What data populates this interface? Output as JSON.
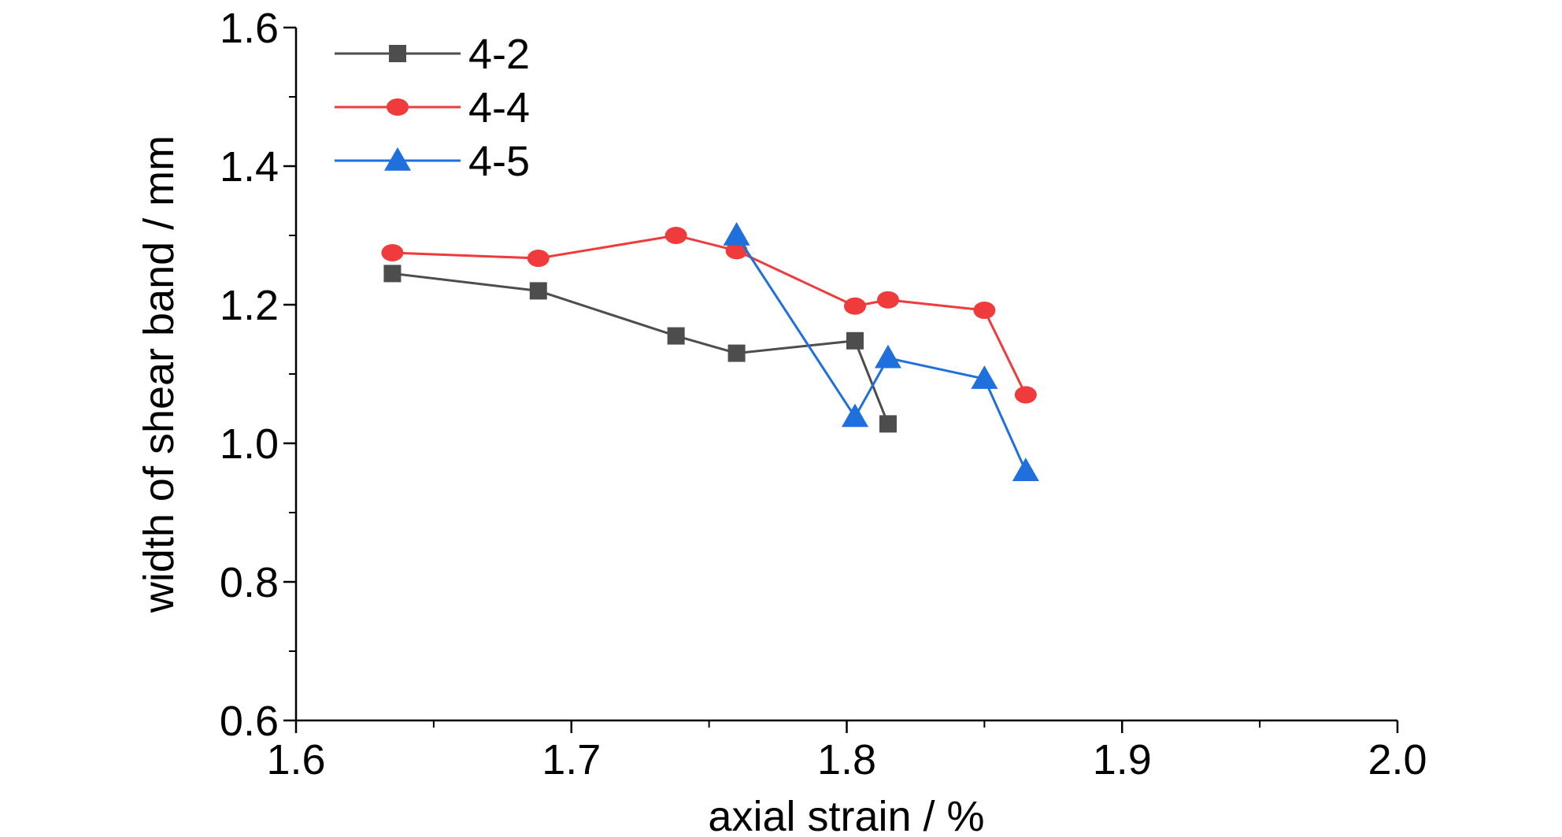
{
  "chart_data": {
    "type": "line",
    "xlabel": "axial strain / %",
    "ylabel": "width of shear band / mm",
    "xlim": [
      1.6,
      2.0
    ],
    "ylim": [
      0.6,
      1.6
    ],
    "x_ticks": [
      "1.6",
      "1.7",
      "1.8",
      "1.9",
      "2.0"
    ],
    "y_ticks": [
      "0.6",
      "0.8",
      "1.0",
      "1.2",
      "1.4",
      "1.6"
    ],
    "grid": false,
    "legend_position": "top-left",
    "series": [
      {
        "name": "4-2",
        "color": "#4d4d4d",
        "marker": "square",
        "x": [
          1.635,
          1.688,
          1.738,
          1.76,
          1.803,
          1.815
        ],
        "y": [
          1.245,
          1.22,
          1.155,
          1.13,
          1.148,
          1.028
        ]
      },
      {
        "name": "4-4",
        "color": "#ef3b3b",
        "marker": "circle",
        "x": [
          1.635,
          1.688,
          1.738,
          1.76,
          1.803,
          1.815,
          1.85,
          1.865
        ],
        "y": [
          1.275,
          1.267,
          1.3,
          1.278,
          1.198,
          1.207,
          1.192,
          1.07
        ]
      },
      {
        "name": "4-5",
        "color": "#1f6fdc",
        "marker": "triangle",
        "x": [
          1.76,
          1.803,
          1.815,
          1.85,
          1.865
        ],
        "y": [
          1.3,
          1.038,
          1.123,
          1.093,
          0.96
        ]
      }
    ]
  }
}
